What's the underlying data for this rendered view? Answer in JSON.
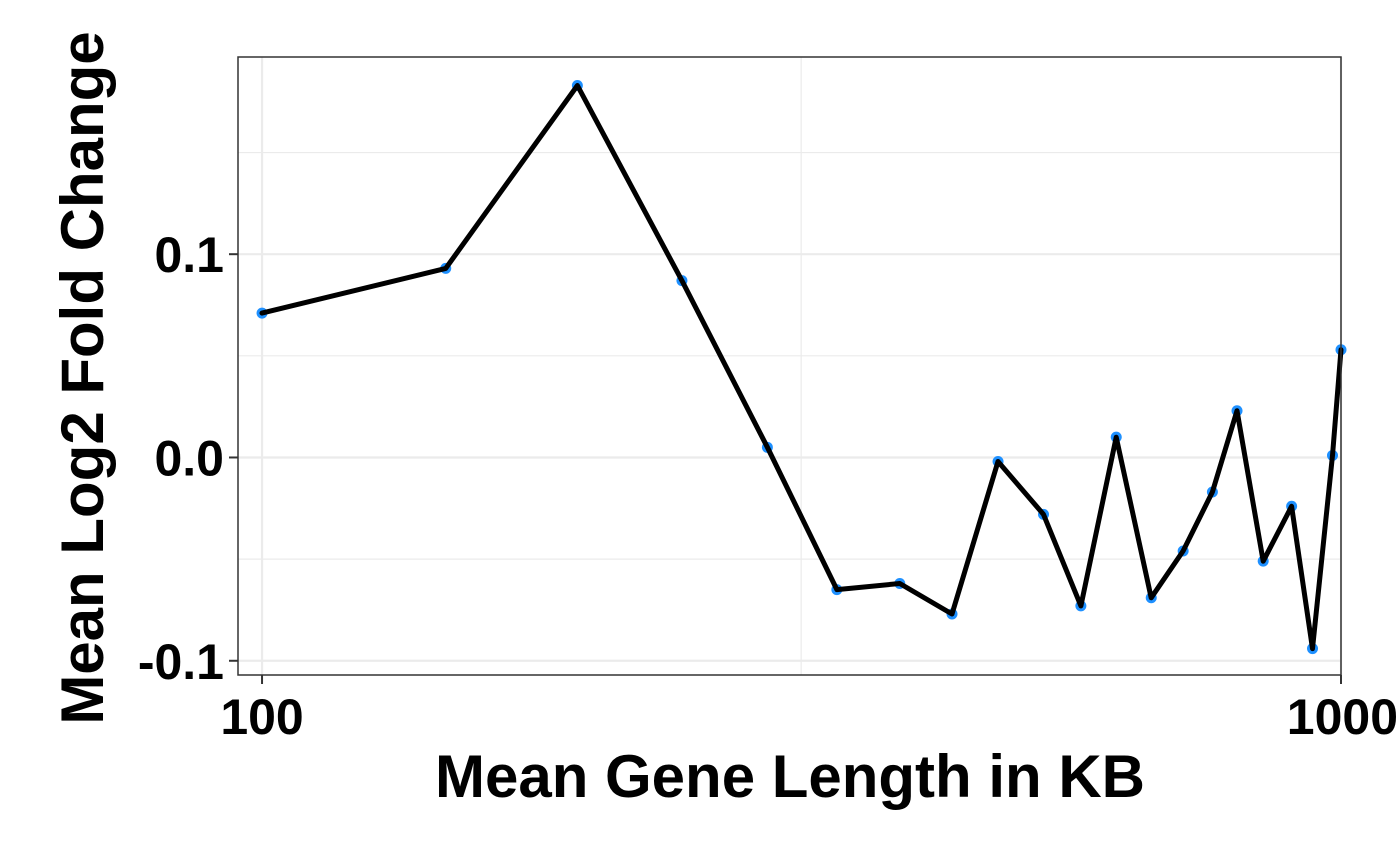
{
  "chart_data": {
    "type": "line",
    "title": "",
    "xlabel": "Mean Gene Length in KB",
    "ylabel": "Mean Log2 Fold Change",
    "x_scale": "log10",
    "xlim": [
      95,
      1000
    ],
    "ylim": [
      -0.107,
      0.197
    ],
    "x_ticks": [
      100,
      1000
    ],
    "x_tick_labels": [
      "100",
      "1000"
    ],
    "x_minor_gridlines": [
      316
    ],
    "y_ticks": [
      -0.1,
      0.0,
      0.1
    ],
    "y_tick_labels": [
      "-0.1",
      "0.0",
      "0.1"
    ],
    "y_minor_gridlines": [
      -0.05,
      0.05,
      0.15
    ],
    "grid": true,
    "legend": "none",
    "series": [
      {
        "x": [
          100,
          148,
          196,
          245,
          294,
          341,
          390,
          436,
          481,
          530,
          574,
          619,
          667,
          714,
          760,
          801,
          847,
          900,
          941,
          982
        ],
        "y": [
          0.071,
          0.093,
          0.183,
          0.087,
          0.005,
          -0.065,
          -0.062,
          -0.077,
          -0.002,
          -0.028,
          -0.073,
          0.01,
          -0.069,
          -0.046,
          -0.017,
          0.023,
          -0.051,
          -0.024,
          -0.094,
          0.001
        ],
        "extra_point": {
          "x": 1000,
          "y": 0.053
        }
      }
    ],
    "colors": {
      "line": "#000000",
      "point": "#1e90ff",
      "grid": "#ebebeb",
      "panel_border": "#333333"
    }
  }
}
